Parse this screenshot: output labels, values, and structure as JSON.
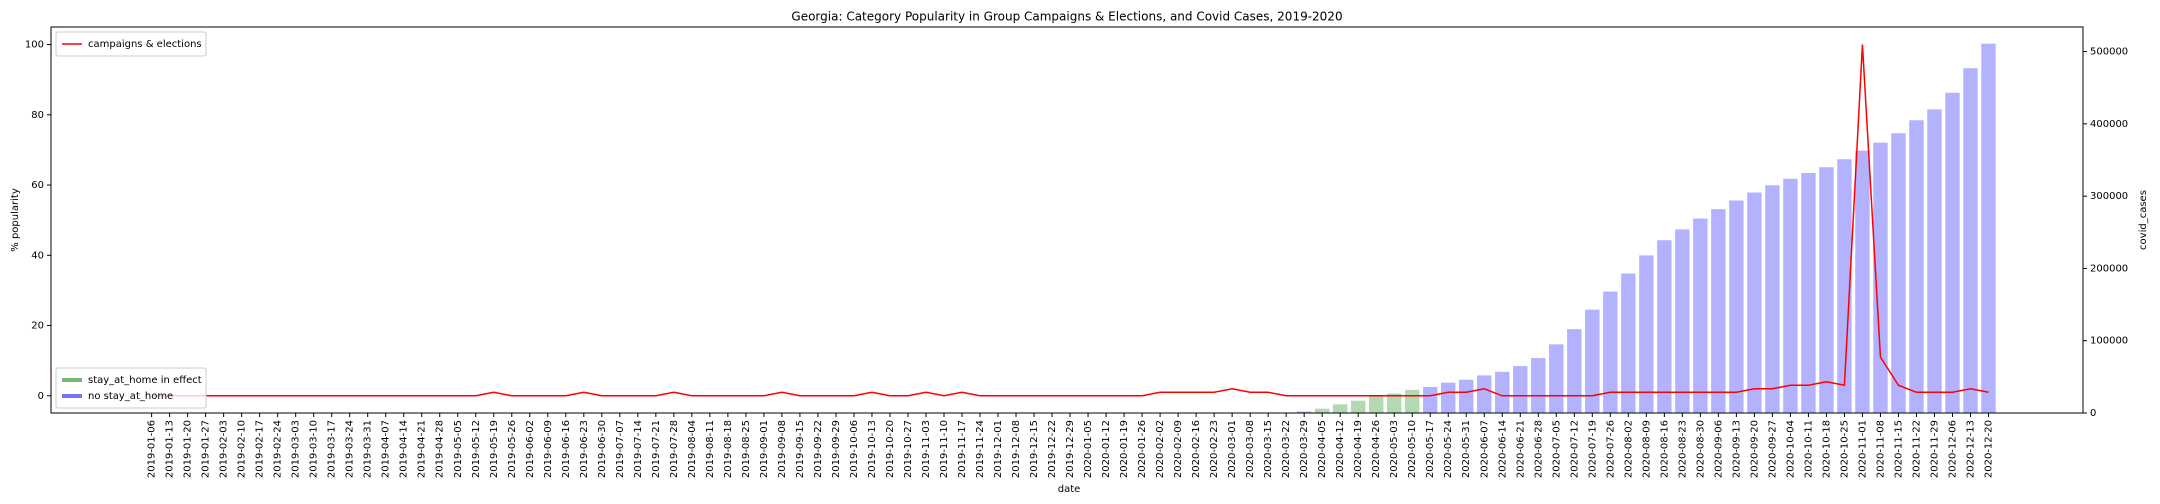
{
  "chart_data": {
    "type": "combo",
    "title": "Georgia: Category Popularity in Group Campaigns & Elections, and Covid Cases, 2019-2020",
    "x_label": "date",
    "y_label": "% popularity",
    "y2_label": "covid_cases",
    "ylim": [
      -4.9,
      105
    ],
    "yticks": [
      0,
      20,
      40,
      60,
      80,
      100
    ],
    "y2lim": [
      0,
      534000
    ],
    "y2ticks": [
      0,
      100000,
      200000,
      300000,
      400000,
      500000
    ],
    "legend": "upper left",
    "bar_legend": "lower left",
    "bar_opacity": 0.3,
    "categories": [
      "2019-01-06",
      "2019-01-13",
      "2019-01-20",
      "2019-01-27",
      "2019-02-03",
      "2019-02-10",
      "2019-02-17",
      "2019-02-24",
      "2019-03-03",
      "2019-03-10",
      "2019-03-17",
      "2019-03-24",
      "2019-03-31",
      "2019-04-07",
      "2019-04-14",
      "2019-04-21",
      "2019-04-28",
      "2019-05-05",
      "2019-05-12",
      "2019-05-19",
      "2019-05-26",
      "2019-06-02",
      "2019-06-09",
      "2019-06-16",
      "2019-06-23",
      "2019-06-30",
      "2019-07-07",
      "2019-07-14",
      "2019-07-21",
      "2019-07-28",
      "2019-08-04",
      "2019-08-11",
      "2019-08-18",
      "2019-08-25",
      "2019-09-01",
      "2019-09-08",
      "2019-09-15",
      "2019-09-22",
      "2019-09-29",
      "2019-10-06",
      "2019-10-13",
      "2019-10-20",
      "2019-10-27",
      "2019-11-03",
      "2019-11-10",
      "2019-11-17",
      "2019-11-24",
      "2019-12-01",
      "2019-12-08",
      "2019-12-15",
      "2019-12-22",
      "2019-12-29",
      "2020-01-05",
      "2020-01-12",
      "2020-01-19",
      "2020-01-26",
      "2020-02-02",
      "2020-02-09",
      "2020-02-16",
      "2020-02-23",
      "2020-03-01",
      "2020-03-08",
      "2020-03-15",
      "2020-03-22",
      "2020-03-29",
      "2020-04-05",
      "2020-04-12",
      "2020-04-19",
      "2020-04-26",
      "2020-05-03",
      "2020-05-10",
      "2020-05-17",
      "2020-05-24",
      "2020-05-31",
      "2020-06-07",
      "2020-06-14",
      "2020-06-21",
      "2020-06-28",
      "2020-07-05",
      "2020-07-12",
      "2020-07-19",
      "2020-07-26",
      "2020-08-02",
      "2020-08-09",
      "2020-08-16",
      "2020-08-23",
      "2020-08-30",
      "2020-09-06",
      "2020-09-13",
      "2020-09-20",
      "2020-09-27",
      "2020-10-04",
      "2020-10-11",
      "2020-10-18",
      "2020-10-25",
      "2020-11-01",
      "2020-11-08",
      "2020-11-15",
      "2020-11-22",
      "2020-11-29",
      "2020-12-06",
      "2020-12-13",
      "2020-12-20"
    ],
    "series": [
      {
        "name": "no stay_at_home",
        "type": "bar",
        "axis": "y2",
        "color": "#0000ff",
        "values": [
          null,
          null,
          null,
          null,
          null,
          null,
          null,
          null,
          null,
          null,
          null,
          null,
          null,
          null,
          null,
          null,
          null,
          null,
          null,
          null,
          null,
          null,
          null,
          null,
          null,
          null,
          null,
          null,
          null,
          null,
          null,
          null,
          null,
          null,
          null,
          null,
          null,
          null,
          null,
          null,
          null,
          null,
          null,
          null,
          null,
          null,
          null,
          null,
          null,
          null,
          null,
          null,
          null,
          null,
          null,
          null,
          null,
          null,
          null,
          null,
          null,
          null,
          null,
          null,
          2000,
          null,
          null,
          null,
          null,
          null,
          null,
          36000,
          42000,
          46000,
          52000,
          57000,
          65000,
          76000,
          95000,
          116000,
          143000,
          168000,
          193000,
          218000,
          239000,
          254000,
          269000,
          282000,
          294000,
          305000,
          315000,
          324000,
          332000,
          340000,
          351000,
          363000,
          374000,
          387000,
          405000,
          420000,
          443000,
          477000,
          511000
        ]
      },
      {
        "name": "stay_at_home in effect",
        "type": "bar",
        "axis": "y2",
        "color": "#008000",
        "values": [
          null,
          null,
          null,
          null,
          null,
          null,
          null,
          null,
          null,
          null,
          null,
          null,
          null,
          null,
          null,
          null,
          null,
          null,
          null,
          null,
          null,
          null,
          null,
          null,
          null,
          null,
          null,
          null,
          null,
          null,
          null,
          null,
          null,
          null,
          null,
          null,
          null,
          null,
          null,
          null,
          null,
          null,
          null,
          null,
          null,
          null,
          null,
          null,
          null,
          null,
          null,
          null,
          null,
          null,
          null,
          null,
          null,
          null,
          null,
          null,
          null,
          null,
          null,
          null,
          null,
          6000,
          12000,
          17000,
          23000,
          27000,
          32000,
          null,
          null,
          null,
          null,
          null,
          null,
          null,
          null,
          null,
          null,
          null,
          null,
          null,
          null,
          null,
          null,
          null,
          null,
          null,
          null,
          null,
          null,
          null,
          null,
          null,
          null,
          null,
          null,
          null,
          null,
          null,
          null
        ]
      },
      {
        "name": "campaigns & elections",
        "type": "line",
        "color": "#ff0000",
        "values": [
          0,
          0,
          0,
          0,
          0,
          0,
          0,
          0,
          0,
          0,
          0,
          0,
          0,
          0,
          0,
          0,
          0,
          0,
          0,
          1,
          0,
          0,
          0,
          0,
          1,
          0,
          0,
          0,
          0,
          1,
          0,
          0,
          0,
          0,
          0,
          1,
          0,
          0,
          0,
          0,
          1,
          0,
          0,
          1,
          0,
          1,
          0,
          0,
          0,
          0,
          0,
          0,
          0,
          0,
          0,
          0,
          1,
          1,
          1,
          1,
          2,
          1,
          1,
          0,
          0,
          0,
          0,
          0,
          0,
          0,
          0,
          0,
          1,
          1,
          2,
          0,
          0,
          0,
          0,
          0,
          0,
          1,
          1,
          1,
          1,
          1,
          1,
          1,
          1,
          2,
          2,
          3,
          3,
          4,
          3,
          100,
          11,
          3,
          1,
          1,
          1,
          2,
          1
        ]
      }
    ]
  }
}
